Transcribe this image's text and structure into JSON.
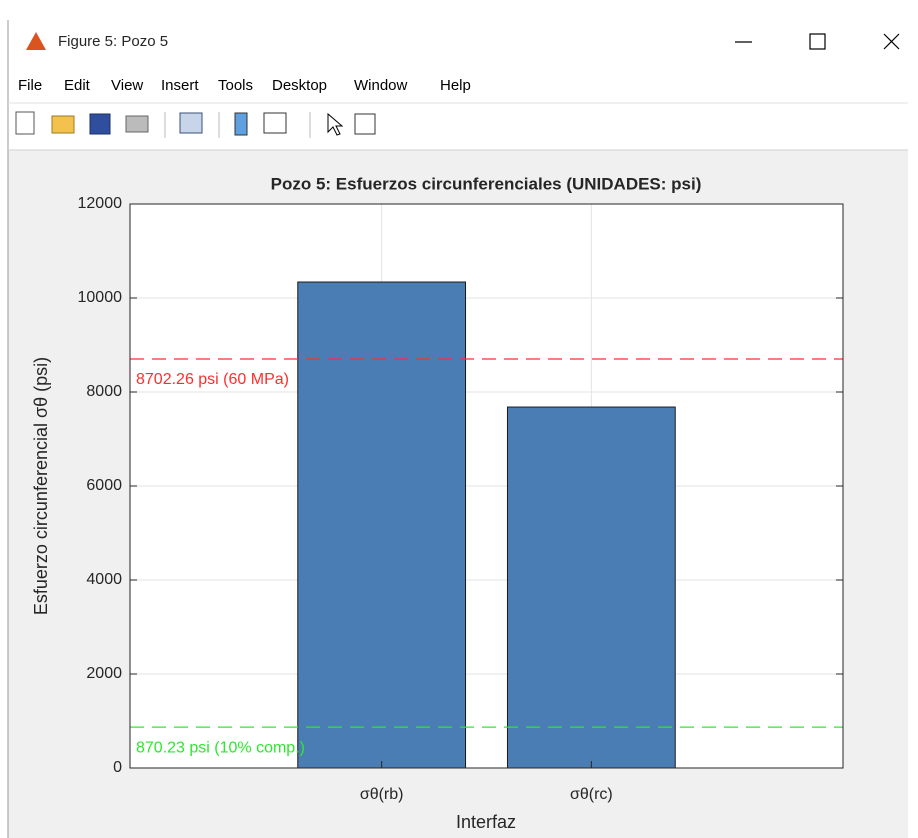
{
  "window": {
    "title": "Figure 5: Pozo 5",
    "menu": [
      "File",
      "Edit",
      "View",
      "Insert",
      "Tools",
      "Desktop",
      "Window",
      "Help"
    ]
  },
  "chart_data": {
    "type": "bar",
    "title": "Pozo 5: Esfuerzos circunferenciales (UNIDADES: psi)",
    "x_label": "Interfaz",
    "y_label": "Esfuerzo circunferencial σθ (psi)",
    "categories": [
      "σθ(rb)",
      "σθ(rc)"
    ],
    "values": [
      10340,
      7680
    ],
    "color": "#4a7db3",
    "ylim": [
      0,
      12000
    ],
    "yticks": [
      0,
      2000,
      4000,
      6000,
      8000,
      10000,
      12000
    ],
    "grid": true,
    "reference_lines": [
      {
        "value": 8702.26,
        "label": "8702.26 psi (60 MPa)",
        "color": "#ff2e2e"
      },
      {
        "value": 870.23,
        "label": "870.23 psi (10% comp.)",
        "color": "#2ee82e"
      }
    ]
  }
}
